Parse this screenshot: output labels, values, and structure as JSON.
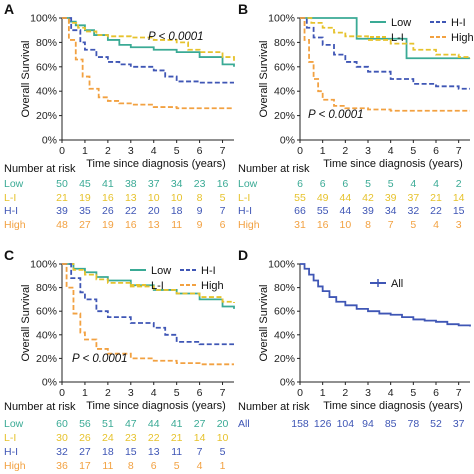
{
  "colors": {
    "Low": "#3aaa95",
    "L-I": "#e6c22c",
    "H-I": "#3f56b5",
    "High": "#f2a141",
    "All": "#3f56b5"
  },
  "risk_title": "Number at risk",
  "chart_data": [
    {
      "type": "line",
      "panel": "A",
      "xlabel": "Time since diagnosis (years)",
      "ylabel": "Overall Survival",
      "xlim": [
        0,
        7.5
      ],
      "ylim": [
        0,
        100
      ],
      "x_ticks": [
        0,
        1,
        2,
        3,
        4,
        5,
        6,
        7
      ],
      "y_ticks": [
        "0%",
        "20%",
        "40%",
        "60%",
        "80%",
        "100%"
      ],
      "annotation": "P < 0.0001",
      "legend": [
        "Low",
        "H-I",
        "L-I",
        "High"
      ],
      "series": [
        {
          "name": "Low",
          "dash": false,
          "points": [
            [
              0,
              100
            ],
            [
              0.3,
              97
            ],
            [
              0.6,
              94
            ],
            [
              1,
              90
            ],
            [
              1.4,
              86
            ],
            [
              2,
              82
            ],
            [
              2.5,
              78
            ],
            [
              3,
              76
            ],
            [
              4,
              74
            ],
            [
              5,
              72
            ],
            [
              6,
              68
            ],
            [
              7,
              62
            ],
            [
              7.5,
              60
            ]
          ]
        },
        {
          "name": "L-I",
          "dash": true,
          "points": [
            [
              0,
              100
            ],
            [
              0.3,
              96
            ],
            [
              0.7,
              92
            ],
            [
              1,
              89
            ],
            [
              1.5,
              86
            ],
            [
              2,
              85
            ],
            [
              3,
              84
            ],
            [
              4,
              82
            ],
            [
              5,
              80
            ],
            [
              5.5,
              74
            ],
            [
              6,
              72
            ],
            [
              7,
              68
            ],
            [
              7.5,
              65
            ]
          ]
        },
        {
          "name": "H-I",
          "dash": true,
          "points": [
            [
              0,
              100
            ],
            [
              0.4,
              90
            ],
            [
              0.8,
              80
            ],
            [
              1,
              74
            ],
            [
              1.5,
              68
            ],
            [
              2,
              64
            ],
            [
              2.5,
              62
            ],
            [
              3,
              60
            ],
            [
              4,
              57
            ],
            [
              4.5,
              52
            ],
            [
              5,
              48
            ],
            [
              6,
              47
            ],
            [
              7,
              47
            ],
            [
              7.5,
              47
            ]
          ]
        },
        {
          "name": "High",
          "dash": true,
          "points": [
            [
              0,
              100
            ],
            [
              0.3,
              82
            ],
            [
              0.6,
              66
            ],
            [
              0.9,
              52
            ],
            [
              1.2,
              42
            ],
            [
              1.6,
              35
            ],
            [
              2,
              32
            ],
            [
              2.5,
              30
            ],
            [
              3,
              29
            ],
            [
              4,
              27
            ],
            [
              5,
              26
            ],
            [
              7,
              26
            ],
            [
              7.5,
              26
            ]
          ]
        }
      ],
      "risk_table": [
        {
          "name": "Low",
          "values": [
            50,
            45,
            41,
            38,
            37,
            34,
            23,
            16
          ]
        },
        {
          "name": "L-I",
          "values": [
            21,
            19,
            16,
            13,
            10,
            10,
            8,
            5
          ]
        },
        {
          "name": "H-I",
          "values": [
            39,
            35,
            26,
            22,
            20,
            18,
            9,
            7
          ]
        },
        {
          "name": "High",
          "values": [
            48,
            27,
            19,
            16,
            13,
            11,
            9,
            6
          ]
        }
      ]
    },
    {
      "type": "line",
      "panel": "B",
      "xlabel": "Time since diagnosis (years)",
      "ylabel": "Overall Survival",
      "xlim": [
        0,
        7.5
      ],
      "ylim": [
        0,
        100
      ],
      "x_ticks": [
        0,
        1,
        2,
        3,
        4,
        5,
        6,
        7
      ],
      "y_ticks": [
        "0%",
        "20%",
        "40%",
        "60%",
        "80%",
        "100%"
      ],
      "annotation": "P < 0.0001",
      "legend": [
        "Low",
        "H-I",
        "L-I",
        "High"
      ],
      "series": [
        {
          "name": "Low",
          "dash": false,
          "points": [
            [
              0,
              100
            ],
            [
              1,
              100
            ],
            [
              1.5,
              100
            ],
            [
              2.4,
              100
            ],
            [
              2.5,
              83
            ],
            [
              4.6,
              83
            ],
            [
              4.7,
              67
            ],
            [
              7.5,
              67
            ]
          ]
        },
        {
          "name": "L-I",
          "dash": true,
          "points": [
            [
              0,
              100
            ],
            [
              0.5,
              96
            ],
            [
              1,
              92
            ],
            [
              1.5,
              88
            ],
            [
              2,
              85
            ],
            [
              3,
              82
            ],
            [
              4,
              79
            ],
            [
              5,
              74
            ],
            [
              6,
              70
            ],
            [
              7,
              68
            ],
            [
              7.5,
              67
            ]
          ]
        },
        {
          "name": "H-I",
          "dash": true,
          "points": [
            [
              0,
              100
            ],
            [
              0.3,
              92
            ],
            [
              0.6,
              84
            ],
            [
              1,
              78
            ],
            [
              1.5,
              70
            ],
            [
              2,
              64
            ],
            [
              2.5,
              60
            ],
            [
              3,
              56
            ],
            [
              4,
              50
            ],
            [
              5,
              46
            ],
            [
              6,
              44
            ],
            [
              7,
              42
            ],
            [
              7.5,
              42
            ]
          ]
        },
        {
          "name": "High",
          "dash": true,
          "points": [
            [
              0,
              100
            ],
            [
              0.2,
              82
            ],
            [
              0.4,
              64
            ],
            [
              0.6,
              50
            ],
            [
              0.8,
              40
            ],
            [
              1,
              33
            ],
            [
              1.5,
              28
            ],
            [
              2,
              26
            ],
            [
              3,
              25
            ],
            [
              4,
              24
            ],
            [
              5,
              24
            ],
            [
              7,
              24
            ],
            [
              7.5,
              24
            ]
          ]
        }
      ],
      "risk_table": [
        {
          "name": "Low",
          "values": [
            6,
            6,
            6,
            5,
            5,
            4,
            4,
            2
          ]
        },
        {
          "name": "L-I",
          "values": [
            55,
            49,
            44,
            42,
            39,
            37,
            21,
            14
          ]
        },
        {
          "name": "H-I",
          "values": [
            66,
            55,
            44,
            39,
            34,
            32,
            22,
            15
          ]
        },
        {
          "name": "High",
          "values": [
            31,
            16,
            10,
            8,
            7,
            5,
            4,
            3
          ]
        }
      ]
    },
    {
      "type": "line",
      "panel": "C",
      "xlabel": "Time since diagnosis (years)",
      "ylabel": "Overall Survival",
      "xlim": [
        0,
        7.5
      ],
      "ylim": [
        0,
        100
      ],
      "x_ticks": [
        0,
        1,
        2,
        3,
        4,
        5,
        6,
        7
      ],
      "y_ticks": [
        "0%",
        "20%",
        "40%",
        "60%",
        "80%",
        "100%"
      ],
      "annotation": "P < 0.0001",
      "legend": [
        "Low",
        "H-I",
        "L-I",
        "High"
      ],
      "series": [
        {
          "name": "Low",
          "dash": false,
          "points": [
            [
              0,
              100
            ],
            [
              0.5,
              96
            ],
            [
              1,
              93
            ],
            [
              1.5,
              89
            ],
            [
              2,
              86
            ],
            [
              3,
              82
            ],
            [
              4,
              78
            ],
            [
              5,
              75
            ],
            [
              6,
              70
            ],
            [
              7,
              64
            ],
            [
              7.5,
              62
            ]
          ]
        },
        {
          "name": "L-I",
          "dash": true,
          "points": [
            [
              0,
              100
            ],
            [
              0.5,
              95
            ],
            [
              1,
              91
            ],
            [
              1.5,
              87
            ],
            [
              2,
              84
            ],
            [
              3,
              81
            ],
            [
              4,
              78
            ],
            [
              5,
              75
            ],
            [
              6,
              72
            ],
            [
              7,
              68
            ],
            [
              7.5,
              67
            ]
          ]
        },
        {
          "name": "H-I",
          "dash": true,
          "points": [
            [
              0,
              100
            ],
            [
              0.4,
              88
            ],
            [
              0.8,
              76
            ],
            [
              1,
              70
            ],
            [
              1.5,
              60
            ],
            [
              2,
              55
            ],
            [
              3,
              50
            ],
            [
              4,
              46
            ],
            [
              4.5,
              40
            ],
            [
              5,
              34
            ],
            [
              6,
              32
            ],
            [
              7,
              32
            ],
            [
              7.5,
              32
            ]
          ]
        },
        {
          "name": "High",
          "dash": true,
          "points": [
            [
              0,
              100
            ],
            [
              0.2,
              80
            ],
            [
              0.5,
              58
            ],
            [
              0.8,
              42
            ],
            [
              1,
              36
            ],
            [
              1.5,
              28
            ],
            [
              2,
              24
            ],
            [
              3,
              20
            ],
            [
              4,
              18
            ],
            [
              5,
              16
            ],
            [
              6,
              15
            ],
            [
              7,
              15
            ],
            [
              7.5,
              15
            ]
          ]
        }
      ],
      "risk_table": [
        {
          "name": "Low",
          "values": [
            60,
            56,
            51,
            47,
            44,
            41,
            27,
            20
          ]
        },
        {
          "name": "L-I",
          "values": [
            30,
            26,
            24,
            23,
            22,
            21,
            14,
            10
          ]
        },
        {
          "name": "H-I",
          "values": [
            32,
            27,
            18,
            15,
            13,
            11,
            7,
            5
          ]
        },
        {
          "name": "High",
          "values": [
            36,
            17,
            11,
            8,
            6,
            5,
            4,
            1
          ]
        }
      ]
    },
    {
      "type": "line",
      "panel": "D",
      "xlabel": "Time since diagnosis (years)",
      "ylabel": "Overall Survival",
      "xlim": [
        0,
        7.5
      ],
      "ylim": [
        0,
        100
      ],
      "x_ticks": [
        0,
        1,
        2,
        3,
        4,
        5,
        6,
        7
      ],
      "y_ticks": [
        "0%",
        "20%",
        "40%",
        "60%",
        "80%",
        "100%"
      ],
      "annotation": "",
      "legend": [
        "All"
      ],
      "series": [
        {
          "name": "All",
          "dash": false,
          "points": [
            [
              0,
              100
            ],
            [
              0.2,
              96
            ],
            [
              0.4,
              91
            ],
            [
              0.6,
              86
            ],
            [
              0.8,
              81
            ],
            [
              1,
              77
            ],
            [
              1.3,
              72
            ],
            [
              1.6,
              68
            ],
            [
              2,
              65
            ],
            [
              2.5,
              62
            ],
            [
              3,
              60
            ],
            [
              3.5,
              58
            ],
            [
              4,
              57
            ],
            [
              4.5,
              55
            ],
            [
              5,
              53
            ],
            [
              5.5,
              52
            ],
            [
              6,
              51
            ],
            [
              6.5,
              49
            ],
            [
              7,
              48
            ],
            [
              7.5,
              47
            ]
          ]
        }
      ],
      "risk_table": [
        {
          "name": "All",
          "values": [
            158,
            126,
            104,
            94,
            85,
            78,
            52,
            37
          ]
        }
      ]
    }
  ]
}
